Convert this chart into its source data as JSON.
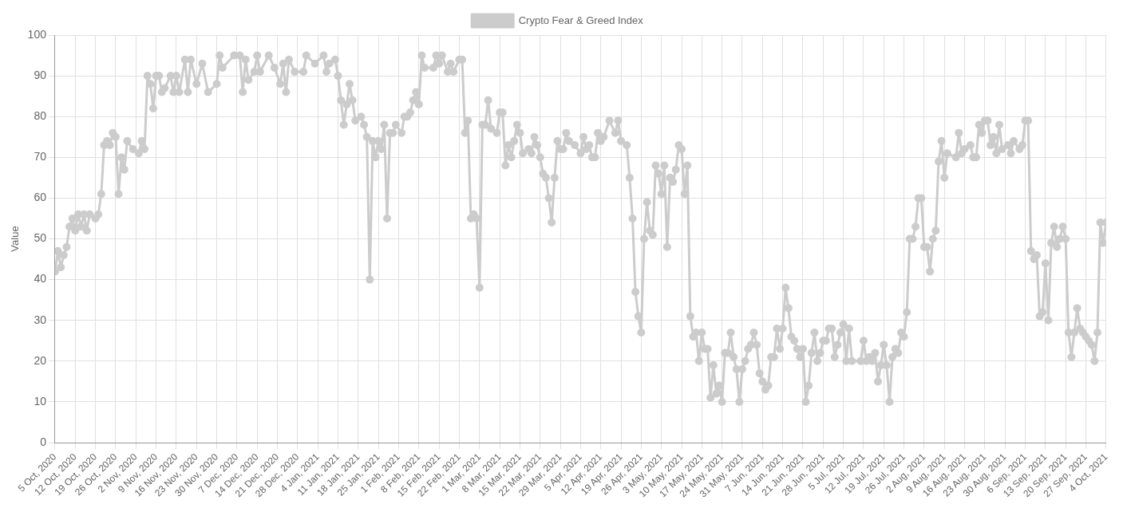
{
  "chart_data": {
    "type": "line",
    "ylabel": "Value",
    "legend": "top",
    "grid": true,
    "marker": "circle",
    "line_style": "solid",
    "xlim": [
      "2020-10-05",
      "2021-10-04"
    ],
    "ylim": [
      0,
      100
    ],
    "yticks": [
      0,
      10,
      20,
      30,
      40,
      50,
      60,
      70,
      80,
      90,
      100
    ],
    "xticks": [
      {
        "value": "2020-10-05",
        "label": "5 Oct, 2020"
      },
      {
        "value": "2020-10-12",
        "label": "12 Oct, 2020"
      },
      {
        "value": "2020-10-19",
        "label": "19 Oct, 2020"
      },
      {
        "value": "2020-10-26",
        "label": "26 Oct, 2020"
      },
      {
        "value": "2020-11-02",
        "label": "2 Nov, 2020"
      },
      {
        "value": "2020-11-09",
        "label": "9 Nov, 2020"
      },
      {
        "value": "2020-11-16",
        "label": "16 Nov, 2020"
      },
      {
        "value": "2020-11-23",
        "label": "23 Nov, 2020"
      },
      {
        "value": "2020-11-30",
        "label": "30 Nov, 2020"
      },
      {
        "value": "2020-12-07",
        "label": "7 Dec, 2020"
      },
      {
        "value": "2020-12-14",
        "label": "14 Dec, 2020"
      },
      {
        "value": "2020-12-21",
        "label": "21 Dec, 2020"
      },
      {
        "value": "2020-12-28",
        "label": "28 Dec, 2020"
      },
      {
        "value": "2021-01-04",
        "label": "4 Jan, 2021"
      },
      {
        "value": "2021-01-11",
        "label": "11 Jan, 2021"
      },
      {
        "value": "2021-01-18",
        "label": "18 Jan, 2021"
      },
      {
        "value": "2021-01-25",
        "label": "25 Jan, 2021"
      },
      {
        "value": "2021-02-01",
        "label": "1 Feb, 2021"
      },
      {
        "value": "2021-02-08",
        "label": "8 Feb, 2021"
      },
      {
        "value": "2021-02-15",
        "label": "15 Feb, 2021"
      },
      {
        "value": "2021-02-22",
        "label": "22 Feb, 2021"
      },
      {
        "value": "2021-03-01",
        "label": "1 Mar, 2021"
      },
      {
        "value": "2021-03-08",
        "label": "8 Mar, 2021"
      },
      {
        "value": "2021-03-15",
        "label": "15 Mar, 2021"
      },
      {
        "value": "2021-03-22",
        "label": "22 Mar, 2021"
      },
      {
        "value": "2021-03-29",
        "label": "29 Mar, 2021"
      },
      {
        "value": "2021-04-05",
        "label": "5 Apr, 2021"
      },
      {
        "value": "2021-04-12",
        "label": "12 Apr, 2021"
      },
      {
        "value": "2021-04-19",
        "label": "19 Apr, 2021"
      },
      {
        "value": "2021-04-26",
        "label": "26 Apr, 2021"
      },
      {
        "value": "2021-05-03",
        "label": "3 May, 2021"
      },
      {
        "value": "2021-05-10",
        "label": "10 May, 2021"
      },
      {
        "value": "2021-05-17",
        "label": "17 May, 2021"
      },
      {
        "value": "2021-05-24",
        "label": "24 May, 2021"
      },
      {
        "value": "2021-05-31",
        "label": "31 May, 2021"
      },
      {
        "value": "2021-06-07",
        "label": "7 Jun, 2021"
      },
      {
        "value": "2021-06-14",
        "label": "14 Jun, 2021"
      },
      {
        "value": "2021-06-21",
        "label": "21 Jun, 2021"
      },
      {
        "value": "2021-06-28",
        "label": "28 Jun, 2021"
      },
      {
        "value": "2021-07-05",
        "label": "5 Jul, 2021"
      },
      {
        "value": "2021-07-12",
        "label": "12 Jul, 2021"
      },
      {
        "value": "2021-07-19",
        "label": "19 Jul, 2021"
      },
      {
        "value": "2021-07-26",
        "label": "26 Jul, 2021"
      },
      {
        "value": "2021-08-02",
        "label": "2 Aug, 2021"
      },
      {
        "value": "2021-08-09",
        "label": "9 Aug, 2021"
      },
      {
        "value": "2021-08-16",
        "label": "16 Aug, 2021"
      },
      {
        "value": "2021-08-23",
        "label": "23 Aug, 2021"
      },
      {
        "value": "2021-08-30",
        "label": "30 Aug, 2021"
      },
      {
        "value": "2021-09-06",
        "label": "6 Sep, 2021"
      },
      {
        "value": "2021-09-13",
        "label": "13 Sep, 2021"
      },
      {
        "value": "2021-09-20",
        "label": "20 Sep, 2021"
      },
      {
        "value": "2021-09-27",
        "label": "27 Sep, 2021"
      },
      {
        "value": "2021-10-04",
        "label": "4 Oct, 2021"
      }
    ],
    "series": [
      {
        "name": "Crypto Fear & Greed Index",
        "color": "#cccccc",
        "x": [
          "2020-10-05",
          "2020-10-06",
          "2020-10-07",
          "2020-10-08",
          "2020-10-09",
          "2020-10-10",
          "2020-10-11",
          "2020-10-12",
          "2020-10-13",
          "2020-10-14",
          "2020-10-15",
          "2020-10-16",
          "2020-10-17",
          "2020-10-19",
          "2020-10-20",
          "2020-10-21",
          "2020-10-22",
          "2020-10-23",
          "2020-10-24",
          "2020-10-25",
          "2020-10-26",
          "2020-10-27",
          "2020-10-28",
          "2020-10-29",
          "2020-10-30",
          "2020-11-01",
          "2020-11-03",
          "2020-11-04",
          "2020-11-05",
          "2020-11-06",
          "2020-11-07",
          "2020-11-08",
          "2020-11-09",
          "2020-11-10",
          "2020-11-11",
          "2020-11-12",
          "2020-11-14",
          "2020-11-15",
          "2020-11-16",
          "2020-11-17",
          "2020-11-19",
          "2020-11-20",
          "2020-11-21",
          "2020-11-23",
          "2020-11-25",
          "2020-11-27",
          "2020-11-30",
          "2020-12-01",
          "2020-12-02",
          "2020-12-06",
          "2020-12-08",
          "2020-12-09",
          "2020-12-10",
          "2020-12-11",
          "2020-12-13",
          "2020-12-14",
          "2020-12-15",
          "2020-12-18",
          "2020-12-20",
          "2020-12-22",
          "2020-12-23",
          "2020-12-24",
          "2020-12-25",
          "2020-12-27",
          "2020-12-30",
          "2020-12-31",
          "2021-01-03",
          "2021-01-06",
          "2021-01-07",
          "2021-01-08",
          "2021-01-10",
          "2021-01-11",
          "2021-01-12",
          "2021-01-13",
          "2021-01-14",
          "2021-01-15",
          "2021-01-16",
          "2021-01-17",
          "2021-01-19",
          "2021-01-20",
          "2021-01-21",
          "2021-01-22",
          "2021-01-23",
          "2021-01-24",
          "2021-01-25",
          "2021-01-26",
          "2021-01-27",
          "2021-01-28",
          "2021-01-29",
          "2021-01-30",
          "2021-01-31",
          "2021-02-02",
          "2021-02-03",
          "2021-02-04",
          "2021-02-05",
          "2021-02-06",
          "2021-02-07",
          "2021-02-08",
          "2021-02-09",
          "2021-02-10",
          "2021-02-13",
          "2021-02-14",
          "2021-02-15",
          "2021-02-16",
          "2021-02-18",
          "2021-02-19",
          "2021-02-20",
          "2021-02-22",
          "2021-02-23",
          "2021-02-24",
          "2021-02-25",
          "2021-02-26",
          "2021-02-27",
          "2021-02-28",
          "2021-03-01",
          "2021-03-02",
          "2021-03-03",
          "2021-03-04",
          "2021-03-05",
          "2021-03-07",
          "2021-03-08",
          "2021-03-09",
          "2021-03-10",
          "2021-03-11",
          "2021-03-12",
          "2021-03-13",
          "2021-03-14",
          "2021-03-15",
          "2021-03-16",
          "2021-03-18",
          "2021-03-19",
          "2021-03-20",
          "2021-03-21",
          "2021-03-22",
          "2021-03-23",
          "2021-03-24",
          "2021-03-25",
          "2021-03-26",
          "2021-03-27",
          "2021-03-28",
          "2021-03-29",
          "2021-03-30",
          "2021-03-31",
          "2021-04-01",
          "2021-04-03",
          "2021-04-05",
          "2021-04-06",
          "2021-04-07",
          "2021-04-08",
          "2021-04-09",
          "2021-04-10",
          "2021-04-11",
          "2021-04-12",
          "2021-04-13",
          "2021-04-15",
          "2021-04-17",
          "2021-04-18",
          "2021-04-19",
          "2021-04-21",
          "2021-04-22",
          "2021-04-23",
          "2021-04-24",
          "2021-04-25",
          "2021-04-26",
          "2021-04-27",
          "2021-04-28",
          "2021-04-29",
          "2021-04-30",
          "2021-05-01",
          "2021-05-02",
          "2021-05-03",
          "2021-05-04",
          "2021-05-05",
          "2021-05-06",
          "2021-05-07",
          "2021-05-08",
          "2021-05-09",
          "2021-05-10",
          "2021-05-11",
          "2021-05-12",
          "2021-05-13",
          "2021-05-14",
          "2021-05-15",
          "2021-05-16",
          "2021-05-17",
          "2021-05-18",
          "2021-05-19",
          "2021-05-20",
          "2021-05-21",
          "2021-05-22",
          "2021-05-23",
          "2021-05-24",
          "2021-05-25",
          "2021-05-26",
          "2021-05-27",
          "2021-05-28",
          "2021-05-29",
          "2021-05-30",
          "2021-05-31",
          "2021-06-01",
          "2021-06-02",
          "2021-06-03",
          "2021-06-04",
          "2021-06-05",
          "2021-06-06",
          "2021-06-07",
          "2021-06-08",
          "2021-06-09",
          "2021-06-10",
          "2021-06-11",
          "2021-06-12",
          "2021-06-13",
          "2021-06-14",
          "2021-06-15",
          "2021-06-16",
          "2021-06-17",
          "2021-06-18",
          "2021-06-19",
          "2021-06-20",
          "2021-06-21",
          "2021-06-22",
          "2021-06-23",
          "2021-06-24",
          "2021-06-25",
          "2021-06-26",
          "2021-06-27",
          "2021-06-28",
          "2021-06-29",
          "2021-06-30",
          "2021-07-01",
          "2021-07-02",
          "2021-07-03",
          "2021-07-04",
          "2021-07-05",
          "2021-07-06",
          "2021-07-07",
          "2021-07-08",
          "2021-07-11",
          "2021-07-12",
          "2021-07-13",
          "2021-07-14",
          "2021-07-15",
          "2021-07-16",
          "2021-07-17",
          "2021-07-18",
          "2021-07-19",
          "2021-07-20",
          "2021-07-21",
          "2021-07-22",
          "2021-07-23",
          "2021-07-24",
          "2021-07-25",
          "2021-07-26",
          "2021-07-27",
          "2021-07-28",
          "2021-07-29",
          "2021-07-30",
          "2021-07-31",
          "2021-08-01",
          "2021-08-02",
          "2021-08-03",
          "2021-08-04",
          "2021-08-05",
          "2021-08-06",
          "2021-08-07",
          "2021-08-08",
          "2021-08-09",
          "2021-08-10",
          "2021-08-13",
          "2021-08-14",
          "2021-08-15",
          "2021-08-16",
          "2021-08-18",
          "2021-08-19",
          "2021-08-20",
          "2021-08-21",
          "2021-08-22",
          "2021-08-23",
          "2021-08-24",
          "2021-08-25",
          "2021-08-26",
          "2021-08-27",
          "2021-08-28",
          "2021-08-29",
          "2021-08-31",
          "2021-09-01",
          "2021-09-02",
          "2021-09-04",
          "2021-09-05",
          "2021-09-06",
          "2021-09-07",
          "2021-09-08",
          "2021-09-09",
          "2021-09-10",
          "2021-09-11",
          "2021-09-12",
          "2021-09-13",
          "2021-09-14",
          "2021-09-15",
          "2021-09-16",
          "2021-09-17",
          "2021-09-18",
          "2021-09-19",
          "2021-09-20",
          "2021-09-21",
          "2021-09-22",
          "2021-09-23",
          "2021-09-24",
          "2021-09-25",
          "2021-09-26",
          "2021-09-27",
          "2021-09-28",
          "2021-09-29",
          "2021-09-30",
          "2021-10-01",
          "2021-10-02",
          "2021-10-03",
          "2021-10-04"
        ],
        "values": [
          42,
          47,
          43,
          46,
          48,
          53,
          55,
          52,
          56,
          53,
          56,
          52,
          56,
          55,
          56,
          61,
          73,
          74,
          73,
          76,
          75,
          61,
          70,
          67,
          74,
          72,
          71,
          74,
          72,
          90,
          88,
          82,
          90,
          90,
          86,
          87,
          90,
          86,
          90,
          86,
          94,
          86,
          94,
          88,
          93,
          86,
          88,
          95,
          92,
          95,
          95,
          86,
          94,
          89,
          91,
          95,
          91,
          95,
          92,
          88,
          93,
          86,
          94,
          91,
          91,
          95,
          93,
          95,
          91,
          93,
          94,
          90,
          84,
          78,
          83,
          88,
          84,
          79,
          80,
          78,
          75,
          40,
          74,
          70,
          74,
          72,
          78,
          55,
          76,
          76,
          78,
          76,
          80,
          80,
          81,
          84,
          86,
          83,
          95,
          92,
          92,
          95,
          93,
          95,
          91,
          93,
          91,
          94,
          94,
          76,
          79,
          55,
          56,
          55,
          38,
          78,
          78,
          84,
          77,
          76,
          81,
          81,
          68,
          73,
          70,
          74,
          78,
          76,
          71,
          72,
          71,
          75,
          73,
          70,
          66,
          65,
          60,
          54,
          65,
          74,
          72,
          72,
          76,
          74,
          73,
          71,
          75,
          72,
          73,
          70,
          70,
          76,
          74,
          75,
          79,
          76,
          79,
          74,
          73,
          65,
          55,
          37,
          31,
          27,
          50,
          59,
          52,
          51,
          68,
          66,
          61,
          68,
          48,
          65,
          64,
          67,
          73,
          72,
          61,
          68,
          31,
          26,
          27,
          20,
          27,
          23,
          23,
          11,
          19,
          12,
          14,
          10,
          22,
          22,
          27,
          21,
          18,
          10,
          18,
          20,
          23,
          24,
          27,
          24,
          17,
          15,
          13,
          14,
          21,
          21,
          28,
          23,
          28,
          38,
          33,
          26,
          25,
          23,
          21,
          23,
          10,
          14,
          22,
          27,
          20,
          22,
          25,
          25,
          28,
          28,
          21,
          24,
          27,
          29,
          20,
          28,
          20,
          20,
          25,
          20,
          21,
          20,
          22,
          15,
          19,
          24,
          19,
          10,
          21,
          23,
          22,
          27,
          26,
          32,
          50,
          50,
          53,
          60,
          60,
          48,
          48,
          42,
          50,
          52,
          69,
          74,
          65,
          71,
          70,
          76,
          71,
          72,
          73,
          70,
          70,
          78,
          76,
          79,
          79,
          73,
          75,
          71,
          78,
          72,
          73,
          71,
          74,
          72,
          73,
          79,
          79,
          47,
          45,
          46,
          31,
          32,
          44,
          30,
          49,
          53,
          48,
          50,
          53,
          50,
          27,
          21,
          27,
          33,
          28,
          27,
          26,
          25,
          24,
          20,
          27,
          54,
          49,
          54
        ]
      }
    ]
  }
}
